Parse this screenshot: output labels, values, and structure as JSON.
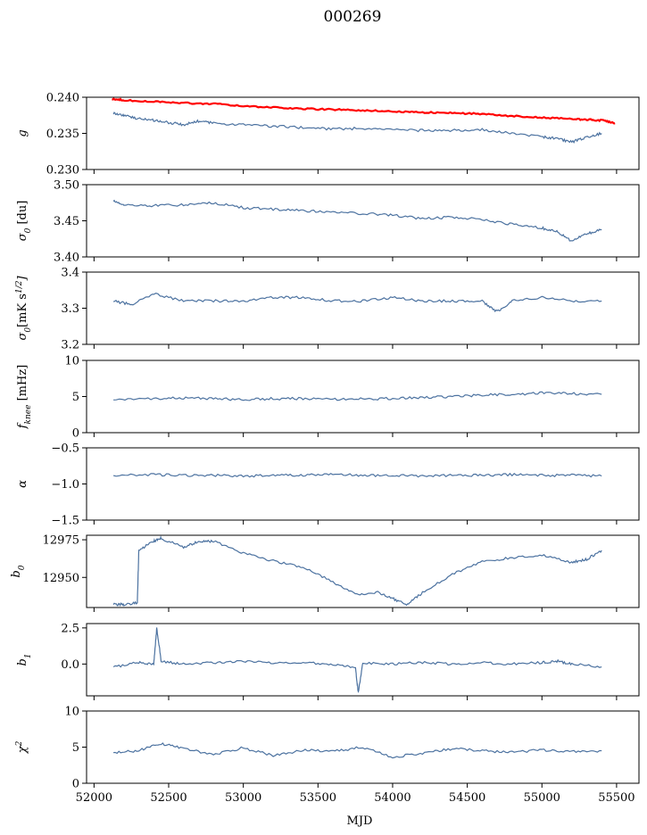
{
  "figure": {
    "title": "000269",
    "xlabel": "MJD"
  },
  "colors": {
    "series": "#4c72a0",
    "reference": "#ff0000"
  },
  "chart_data": [
    {
      "type": "line",
      "ylabel": "g",
      "ylim": [
        0.23,
        0.24
      ],
      "yticks": [
        "0.230",
        "0.235",
        "0.240"
      ],
      "ytick_values": [
        0.23,
        0.235,
        0.24
      ],
      "xlim": [
        51950,
        55650
      ],
      "xticks": [
        52000,
        52500,
        53000,
        53500,
        54000,
        54500,
        55000,
        55500
      ],
      "xticklabels_shown": false,
      "series": [
        {
          "color": "#4c72a0",
          "x": [
            52130,
            52200,
            52300,
            52400,
            52500,
            52600,
            52700,
            52800,
            53000,
            53200,
            53400,
            53600,
            53800,
            54000,
            54200,
            54400,
            54600,
            54800,
            55000,
            55100,
            55200,
            55300,
            55400
          ],
          "y": [
            0.2378,
            0.2375,
            0.237,
            0.2368,
            0.2365,
            0.2362,
            0.2367,
            0.2364,
            0.2362,
            0.236,
            0.2358,
            0.2356,
            0.2357,
            0.2355,
            0.2354,
            0.2354,
            0.2355,
            0.235,
            0.2345,
            0.2343,
            0.2338,
            0.2345,
            0.235
          ]
        },
        {
          "color": "#ff0000",
          "x": [
            52120,
            52200,
            52400,
            52600,
            52800,
            53000,
            53200,
            53400,
            53600,
            53800,
            54000,
            54200,
            54400,
            54600,
            54800,
            55000,
            55200,
            55300,
            55400,
            55490
          ],
          "y": [
            0.2398,
            0.2396,
            0.2394,
            0.2392,
            0.2391,
            0.2388,
            0.2386,
            0.2384,
            0.2383,
            0.2382,
            0.238,
            0.2379,
            0.2378,
            0.2377,
            0.2374,
            0.2372,
            0.237,
            0.2369,
            0.2368,
            0.2364
          ]
        }
      ]
    },
    {
      "type": "line",
      "ylabel": "σ0 [du]",
      "ylim": [
        3.4,
        3.5
      ],
      "yticks": [
        "3.40",
        "3.45",
        "3.50"
      ],
      "ytick_values": [
        3.4,
        3.45,
        3.5
      ],
      "xlim": [
        51950,
        55650
      ],
      "xticks": [
        52000,
        52500,
        53000,
        53500,
        54000,
        54500,
        55000,
        55500
      ],
      "xticklabels_shown": false,
      "series": [
        {
          "color": "#4c72a0",
          "x": [
            52130,
            52200,
            52400,
            52600,
            52800,
            53000,
            53200,
            53400,
            53600,
            53800,
            54000,
            54200,
            54400,
            54600,
            54800,
            55000,
            55100,
            55200,
            55300,
            55400
          ],
          "y": [
            3.478,
            3.472,
            3.471,
            3.472,
            3.475,
            3.468,
            3.466,
            3.464,
            3.462,
            3.46,
            3.458,
            3.453,
            3.455,
            3.452,
            3.445,
            3.44,
            3.435,
            3.422,
            3.432,
            3.438
          ]
        }
      ]
    },
    {
      "type": "line",
      "ylabel": "σ0[mK s^1/2]",
      "ylim": [
        3.2,
        3.4
      ],
      "yticks": [
        "3.2",
        "3.3",
        "3.4"
      ],
      "ytick_values": [
        3.2,
        3.3,
        3.4
      ],
      "xlim": [
        51950,
        55650
      ],
      "xticks": [
        52000,
        52500,
        53000,
        53500,
        54000,
        54500,
        55000,
        55500
      ],
      "xticklabels_shown": false,
      "series": [
        {
          "color": "#4c72a0",
          "x": [
            52130,
            52250,
            52400,
            52600,
            52800,
            53000,
            53200,
            53400,
            53600,
            53800,
            54000,
            54200,
            54400,
            54600,
            54700,
            54800,
            55000,
            55200,
            55400
          ],
          "y": [
            3.32,
            3.31,
            3.34,
            3.32,
            3.32,
            3.32,
            3.33,
            3.33,
            3.32,
            3.32,
            3.33,
            3.32,
            3.32,
            3.32,
            3.29,
            3.32,
            3.33,
            3.32,
            3.32
          ]
        }
      ]
    },
    {
      "type": "line",
      "ylabel": "fknee [mHz]",
      "ylim": [
        0,
        10
      ],
      "yticks": [
        "0",
        "5",
        "10"
      ],
      "ytick_values": [
        0,
        5,
        10
      ],
      "xlim": [
        51950,
        55650
      ],
      "xticks": [
        52000,
        52500,
        53000,
        53500,
        54000,
        54500,
        55000,
        55500
      ],
      "xticklabels_shown": false,
      "series": [
        {
          "color": "#4c72a0",
          "x": [
            52130,
            52400,
            52600,
            52800,
            53000,
            53200,
            53400,
            53600,
            53800,
            54000,
            54200,
            54400,
            54600,
            54800,
            55000,
            55200,
            55400
          ],
          "y": [
            4.6,
            4.7,
            4.8,
            4.7,
            4.6,
            4.7,
            4.7,
            4.6,
            4.7,
            4.7,
            4.9,
            5.0,
            5.2,
            5.3,
            5.5,
            5.4,
            5.3
          ]
        }
      ]
    },
    {
      "type": "line",
      "ylabel": "α",
      "ylim": [
        -1.5,
        -0.5
      ],
      "yticks": [
        "−1.5",
        "−1.0",
        "−0.5"
      ],
      "ytick_values": [
        -1.5,
        -1.0,
        -0.5
      ],
      "xlim": [
        51950,
        55650
      ],
      "xticks": [
        52000,
        52500,
        53000,
        53500,
        54000,
        54500,
        55000,
        55500
      ],
      "xticklabels_shown": false,
      "series": [
        {
          "color": "#4c72a0",
          "x": [
            52130,
            52400,
            52600,
            52800,
            53000,
            53200,
            53400,
            53600,
            53800,
            54000,
            54200,
            54400,
            54600,
            54800,
            55000,
            55200,
            55400
          ],
          "y": [
            -0.88,
            -0.87,
            -0.88,
            -0.88,
            -0.89,
            -0.88,
            -0.88,
            -0.87,
            -0.88,
            -0.88,
            -0.89,
            -0.88,
            -0.88,
            -0.87,
            -0.88,
            -0.88,
            -0.89
          ]
        }
      ]
    },
    {
      "type": "line",
      "ylabel": "b0",
      "ylim": [
        12930,
        12978
      ],
      "yticks": [
        "12950",
        "12975"
      ],
      "ytick_values": [
        12950,
        12975
      ],
      "xlim": [
        51950,
        55650
      ],
      "xticks": [
        52000,
        52500,
        53000,
        53500,
        54000,
        54500,
        55000,
        55500
      ],
      "xticklabels_shown": false,
      "series": [
        {
          "color": "#4c72a0",
          "x": [
            52130,
            52200,
            52290,
            52300,
            52400,
            52450,
            52600,
            52700,
            52800,
            53000,
            53200,
            53400,
            53600,
            53750,
            53900,
            54000,
            54100,
            54200,
            54400,
            54600,
            54800,
            55000,
            55200,
            55300,
            55400
          ],
          "y": [
            12932,
            12932,
            12933,
            12968,
            12974,
            12976,
            12970,
            12974,
            12974,
            12966,
            12961,
            12957,
            12947,
            12939,
            12940,
            12936,
            12932,
            12940,
            12952,
            12961,
            12963,
            12965,
            12960,
            12962,
            12968
          ]
        }
      ]
    },
    {
      "type": "line",
      "ylabel": "b1",
      "ylim": [
        -2.2,
        2.8
      ],
      "yticks": [
        "0.0",
        "2.5"
      ],
      "ytick_values": [
        0,
        2.5
      ],
      "xlim": [
        51950,
        55650
      ],
      "xticks": [
        52000,
        52500,
        53000,
        53500,
        54000,
        54500,
        55000,
        55500
      ],
      "xticklabels_shown": false,
      "series": [
        {
          "color": "#4c72a0",
          "x": [
            52130,
            52300,
            52400,
            52420,
            52450,
            52600,
            52800,
            53000,
            53200,
            53400,
            53600,
            53750,
            53770,
            53800,
            54000,
            54200,
            54400,
            54600,
            54800,
            55000,
            55100,
            55200,
            55400
          ],
          "y": [
            -0.2,
            0.1,
            0.0,
            2.5,
            0.2,
            0.0,
            0.1,
            0.2,
            0.1,
            0.1,
            0.0,
            -0.2,
            -2.0,
            0.1,
            0.0,
            0.1,
            0.0,
            0.1,
            0.0,
            0.1,
            0.2,
            0.0,
            -0.2
          ]
        }
      ]
    },
    {
      "type": "line",
      "ylabel": "χ2",
      "ylim": [
        0,
        10
      ],
      "yticks": [
        "0",
        "5",
        "10"
      ],
      "ytick_values": [
        0,
        5,
        10
      ],
      "xlim": [
        51950,
        55650
      ],
      "xticks": [
        52000,
        52500,
        53000,
        53500,
        54000,
        54500,
        55000,
        55500
      ],
      "xticklabels_shown": true,
      "xticklabels": [
        "52000",
        "52500",
        "53000",
        "53500",
        "54000",
        "54500",
        "55000",
        "55500"
      ],
      "series": [
        {
          "color": "#4c72a0",
          "x": [
            52130,
            52300,
            52450,
            52600,
            52800,
            53000,
            53200,
            53400,
            53600,
            53800,
            54000,
            54200,
            54400,
            54600,
            54800,
            55000,
            55200,
            55400
          ],
          "y": [
            4.2,
            4.5,
            5.5,
            4.8,
            4.0,
            4.9,
            3.8,
            4.6,
            4.4,
            5.0,
            3.6,
            4.2,
            4.8,
            4.5,
            4.3,
            4.6,
            4.4,
            4.5
          ]
        }
      ]
    }
  ]
}
